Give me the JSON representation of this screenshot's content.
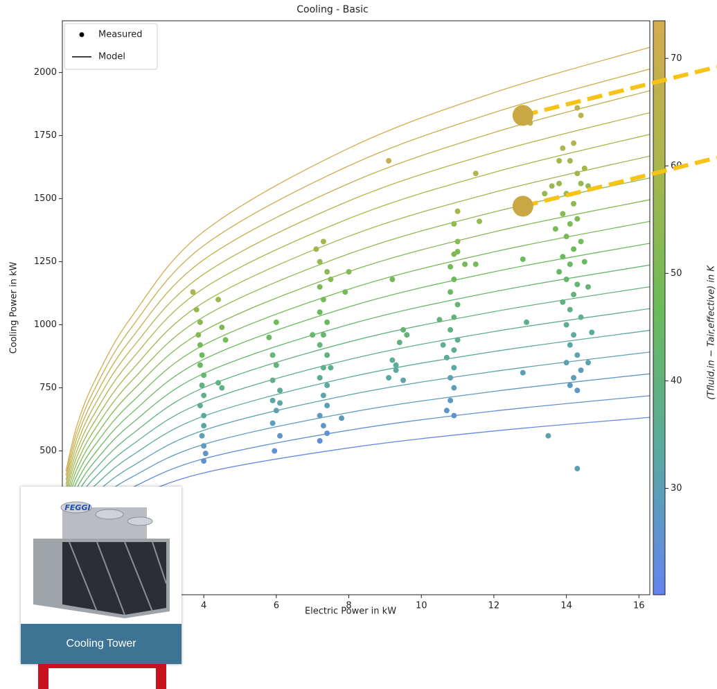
{
  "chart_data": {
    "type": "scatter",
    "title": "Cooling - Basic",
    "x_label": "Electric Power in kW",
    "y_label": "Cooling Power in kW",
    "colorbar_label": "(Tfluid,in − Tair,effective) in K",
    "xlim": [
      0.1,
      16.3
    ],
    "ylim": [
      -70,
      2205
    ],
    "xticks": [
      4,
      6,
      8,
      10,
      12,
      14,
      16
    ],
    "yticks": [
      500,
      750,
      1000,
      1250,
      1500,
      1750,
      2000
    ],
    "clim": [
      20.1,
      73.5
    ],
    "cticks": [
      30,
      40,
      50,
      60,
      70
    ],
    "colormap": [
      "#6384ee",
      "#5aa9a0",
      "#6bbb5a",
      "#aab64c",
      "#d5ab4e"
    ],
    "legend_position": "upper left",
    "measured": {
      "name": "Measured",
      "x": [
        3.7,
        3.8,
        3.9,
        3.85,
        3.9,
        3.95,
        3.9,
        4.0,
        3.95,
        4.0,
        3.9,
        4.0,
        4.0,
        3.95,
        4.0,
        4.05,
        4.0,
        4.4,
        4.5,
        4.6,
        4.4,
        4.5,
        5.8,
        5.9,
        6.0,
        5.9,
        6.0,
        6.1,
        5.9,
        6.0,
        5.9,
        6.1,
        5.95,
        6.1,
        7.1,
        7.3,
        7.2,
        7.4,
        7.2,
        7.5,
        7.3,
        7.2,
        7.4,
        7.3,
        7.2,
        7.4,
        7.3,
        7.5,
        7.2,
        7.4,
        7.3,
        7.4,
        7.2,
        7.3,
        7.4,
        7.2,
        7.0,
        8.0,
        7.9,
        7.8,
        9.1,
        9.2,
        9.5,
        9.4,
        9.6,
        9.2,
        9.3,
        9.1,
        9.5,
        9.3,
        10.8,
        10.9,
        11.0,
        10.9,
        11.0,
        11.0,
        10.9,
        10.8,
        11.0,
        10.9,
        10.8,
        11.0,
        10.9,
        10.7,
        10.9,
        10.8,
        10.9,
        10.8,
        10.7,
        10.9,
        10.5,
        11.2,
        11.5,
        11.6,
        11.5,
        10.6,
        13.9,
        14.1,
        14.3,
        13.8,
        14.0,
        14.4,
        14.2,
        13.9,
        14.1,
        14.3,
        13.7,
        14.0,
        14.4,
        14.2,
        13.9,
        14.1,
        14.5,
        13.8,
        14.0,
        14.3,
        14.2,
        13.9,
        14.1,
        14.4,
        14.0,
        14.2,
        14.1,
        14.3,
        14.0,
        14.4,
        14.2,
        14.1,
        14.3,
        14.6,
        14.7,
        14.6,
        14.6,
        14.4,
        14.3,
        13.6,
        13.0,
        13.4,
        12.8,
        12.9,
        12.8,
        13.5,
        14.3,
        14.5,
        13.8,
        14.2
      ],
      "values": [
        1130,
        1060,
        1010,
        960,
        920,
        880,
        840,
        800,
        760,
        720,
        680,
        640,
        600,
        560,
        520,
        490,
        460,
        1100,
        990,
        940,
        770,
        750,
        950,
        880,
        1010,
        780,
        840,
        740,
        700,
        660,
        610,
        560,
        500,
        690,
        1300,
        1330,
        1250,
        1210,
        1150,
        1180,
        1100,
        1050,
        1010,
        960,
        920,
        880,
        830,
        830,
        790,
        760,
        720,
        680,
        640,
        600,
        570,
        540,
        960,
        1210,
        1130,
        630,
        1650,
        1180,
        980,
        930,
        960,
        860,
        820,
        790,
        780,
        840,
        1230,
        1280,
        1450,
        1400,
        1330,
        1290,
        1180,
        1130,
        1080,
        1030,
        980,
        940,
        900,
        870,
        830,
        790,
        750,
        700,
        660,
        640,
        1020,
        1240,
        1600,
        1410,
        1240,
        920,
        1700,
        1650,
        1600,
        1560,
        1520,
        1560,
        1480,
        1440,
        1400,
        1420,
        1380,
        1350,
        1330,
        1300,
        1270,
        1240,
        1250,
        1210,
        1180,
        1160,
        1120,
        1090,
        1060,
        1030,
        1000,
        960,
        920,
        880,
        850,
        820,
        790,
        760,
        740,
        1150,
        970,
        1550,
        850,
        1830,
        1860,
        1550,
        1800,
        1520,
        1260,
        1010,
        810,
        560,
        430,
        1620,
        1650,
        1720
      ],
      "color_values": [
        61,
        57,
        54,
        52,
        49,
        47,
        45,
        43,
        40,
        38,
        36,
        34,
        32,
        30,
        28,
        26,
        25,
        57,
        51,
        49,
        40,
        39,
        45,
        42,
        48,
        37,
        40,
        35,
        33,
        31,
        29,
        27,
        24,
        33,
        58,
        59,
        56,
        54,
        51,
        52,
        49,
        47,
        45,
        43,
        41,
        39,
        37,
        37,
        35,
        34,
        32,
        30,
        28,
        27,
        25,
        24,
        43,
        52,
        49,
        28,
        68,
        49,
        41,
        39,
        40,
        36,
        34,
        33,
        32,
        35,
        49,
        51,
        58,
        56,
        53,
        51,
        47,
        45,
        43,
        41,
        39,
        37,
        36,
        35,
        33,
        31,
        30,
        28,
        26,
        25,
        41,
        49,
        63,
        56,
        49,
        37,
        62,
        60,
        58,
        57,
        55,
        56,
        54,
        52,
        51,
        51,
        50,
        49,
        48,
        47,
        46,
        45,
        45,
        44,
        43,
        42,
        41,
        40,
        38,
        37,
        36,
        35,
        33,
        32,
        31,
        30,
        29,
        28,
        27,
        41,
        35,
        56,
        31,
        66,
        67,
        57,
        66,
        56,
        47,
        37,
        30,
        32,
        30,
        59,
        60,
        62
      ]
    },
    "model": {
      "name": "Model",
      "x": [
        0.2,
        0.5,
        1,
        2,
        4,
        8,
        12,
        16.3
      ],
      "curves": [
        {
          "delta_t": 22,
          "values": [
            127,
            181,
            235,
            310,
            413,
            512,
            579,
            633
          ]
        },
        {
          "delta_t": 25,
          "values": [
            144,
            206,
            267,
            353,
            469,
            582,
            658,
            719
          ]
        },
        {
          "delta_t": 28,
          "values": [
            161,
            230,
            299,
            395,
            526,
            652,
            736,
            806
          ]
        },
        {
          "delta_t": 31,
          "values": [
            178,
            255,
            331,
            437,
            582,
            722,
            815,
            892
          ]
        },
        {
          "delta_t": 34,
          "values": [
            196,
            279,
            363,
            480,
            638,
            792,
            894,
            978
          ]
        },
        {
          "delta_t": 37,
          "values": [
            213,
            304,
            395,
            522,
            694,
            862,
            973,
            1064
          ]
        },
        {
          "delta_t": 40,
          "values": [
            230,
            329,
            427,
            564,
            751,
            932,
            1052,
            1151
          ]
        },
        {
          "delta_t": 43,
          "values": [
            247,
            353,
            459,
            607,
            807,
            1001,
            1131,
            1237
          ]
        },
        {
          "delta_t": 46,
          "values": [
            265,
            378,
            491,
            649,
            863,
            1071,
            1210,
            1323
          ]
        },
        {
          "delta_t": 49,
          "values": [
            282,
            403,
            523,
            691,
            920,
            1141,
            1289,
            1410
          ]
        },
        {
          "delta_t": 52,
          "values": [
            299,
            427,
            555,
            734,
            976,
            1211,
            1368,
            1496
          ]
        },
        {
          "delta_t": 55,
          "values": [
            316,
            452,
            587,
            776,
            1032,
            1281,
            1447,
            1582
          ]
        },
        {
          "delta_t": 58,
          "values": [
            334,
            477,
            619,
            818,
            1089,
            1351,
            1525,
            1669
          ]
        },
        {
          "delta_t": 61,
          "values": [
            351,
            501,
            651,
            861,
            1145,
            1421,
            1604,
            1755
          ]
        },
        {
          "delta_t": 64,
          "values": [
            368,
            526,
            684,
            903,
            1201,
            1491,
            1683,
            1841
          ]
        },
        {
          "delta_t": 67,
          "values": [
            385,
            551,
            716,
            945,
            1258,
            1560,
            1762,
            1928
          ]
        },
        {
          "delta_t": 70,
          "values": [
            403,
            575,
            748,
            988,
            1314,
            1630,
            1841,
            2014
          ]
        },
        {
          "delta_t": 73,
          "values": [
            420,
            600,
            780,
            1030,
            1370,
            1700,
            1920,
            2100
          ]
        }
      ]
    },
    "highlights": {
      "x": [
        12.8,
        12.8
      ],
      "values": [
        1830,
        1470
      ],
      "color": "#c9a844",
      "line_color": "#f7c315"
    }
  },
  "card": {
    "caption": "Cooling Tower",
    "logo": "FEGGI"
  }
}
